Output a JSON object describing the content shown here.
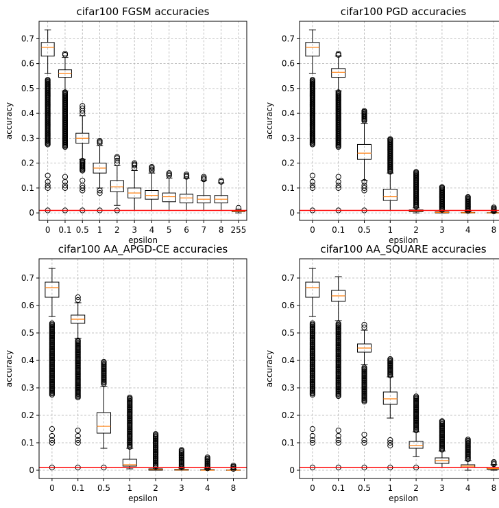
{
  "figure": {
    "background": "#ffffff"
  },
  "chart_data": [
    {
      "type": "box",
      "title": "cifar100 FGSM accuracies",
      "xlabel": "epsilon",
      "ylabel": "accuracy",
      "ylim": [
        -0.03,
        0.77
      ],
      "yticks": [
        0.0,
        0.1,
        0.2,
        0.3,
        0.4,
        0.5,
        0.6,
        0.7
      ],
      "grid": true,
      "reference_line": {
        "y": 0.01,
        "color": "#ff0000"
      },
      "median_color": "#ff7f0e",
      "categories": [
        "0",
        "0.1",
        "0.5",
        "1",
        "2",
        "3",
        "4",
        "5",
        "6",
        "7",
        "8",
        "255"
      ],
      "boxes": [
        {
          "q1": 0.63,
          "median": 0.665,
          "q3": 0.685,
          "whislo": 0.56,
          "whishi": 0.735,
          "fliers_range": [
            0.275,
            0.535
          ],
          "fliers": [
            0.01,
            0.1,
            0.11,
            0.125,
            0.15
          ]
        },
        {
          "q1": 0.545,
          "median": 0.56,
          "q3": 0.575,
          "whislo": 0.49,
          "whishi": 0.625,
          "fliers_range": [
            0.265,
            0.485
          ],
          "fliers": [
            0.01,
            0.1,
            0.11,
            0.125,
            0.145,
            0.635,
            0.64
          ]
        },
        {
          "q1": 0.28,
          "median": 0.3,
          "q3": 0.32,
          "whislo": 0.215,
          "whishi": 0.39,
          "fliers_range": [
            0.17,
            0.21
          ],
          "fliers": [
            0.01,
            0.09,
            0.1,
            0.11,
            0.13,
            0.4,
            0.41,
            0.42,
            0.43
          ]
        },
        {
          "q1": 0.16,
          "median": 0.18,
          "q3": 0.2,
          "whislo": 0.1,
          "whishi": 0.27,
          "fliers": [
            0.01,
            0.08,
            0.09,
            0.28,
            0.285,
            0.29
          ]
        },
        {
          "q1": 0.085,
          "median": 0.105,
          "q3": 0.13,
          "whislo": 0.03,
          "whishi": 0.19,
          "fliers": [
            0.01,
            0.2,
            0.21,
            0.22,
            0.225
          ]
        },
        {
          "q1": 0.06,
          "median": 0.08,
          "q3": 0.1,
          "whislo": 0.01,
          "whishi": 0.17,
          "fliers": [
            0.18,
            0.19,
            0.195,
            0.2
          ]
        },
        {
          "q1": 0.055,
          "median": 0.07,
          "q3": 0.09,
          "whislo": 0.01,
          "whishi": 0.16,
          "fliers": [
            0.17,
            0.175,
            0.18,
            0.185
          ]
        },
        {
          "q1": 0.045,
          "median": 0.065,
          "q3": 0.08,
          "whislo": 0.01,
          "whishi": 0.14,
          "fliers": [
            0.15,
            0.155,
            0.16
          ]
        },
        {
          "q1": 0.04,
          "median": 0.06,
          "q3": 0.075,
          "whislo": 0.01,
          "whishi": 0.14,
          "fliers": [
            0.145,
            0.15,
            0.155
          ]
        },
        {
          "q1": 0.04,
          "median": 0.055,
          "q3": 0.07,
          "whislo": 0.01,
          "whishi": 0.13,
          "fliers": [
            0.135,
            0.14,
            0.145
          ]
        },
        {
          "q1": 0.04,
          "median": 0.055,
          "q3": 0.07,
          "whislo": 0.01,
          "whishi": 0.12,
          "fliers": [
            0.125,
            0.13
          ]
        },
        {
          "q1": 0.005,
          "median": 0.007,
          "q3": 0.01,
          "whislo": 0.0,
          "whishi": 0.015,
          "fliers": [
            0.02
          ]
        }
      ]
    },
    {
      "type": "box",
      "title": "cifar100 PGD accuracies",
      "xlabel": "epsilon",
      "ylabel": "accuracy",
      "ylim": [
        -0.03,
        0.77
      ],
      "yticks": [
        0.0,
        0.1,
        0.2,
        0.3,
        0.4,
        0.5,
        0.6,
        0.7
      ],
      "grid": true,
      "reference_line": {
        "y": 0.01,
        "color": "#ff0000"
      },
      "median_color": "#ff7f0e",
      "categories": [
        "0",
        "0.1",
        "0.5",
        "1",
        "2",
        "3",
        "4",
        "8"
      ],
      "boxes": [
        {
          "q1": 0.63,
          "median": 0.665,
          "q3": 0.685,
          "whislo": 0.56,
          "whishi": 0.735,
          "fliers_range": [
            0.275,
            0.535
          ],
          "fliers": [
            0.01,
            0.1,
            0.11,
            0.125,
            0.15
          ]
        },
        {
          "q1": 0.545,
          "median": 0.565,
          "q3": 0.58,
          "whislo": 0.49,
          "whishi": 0.63,
          "fliers_range": [
            0.265,
            0.485
          ],
          "fliers": [
            0.01,
            0.1,
            0.11,
            0.125,
            0.145,
            0.635,
            0.64
          ]
        },
        {
          "q1": 0.215,
          "median": 0.24,
          "q3": 0.275,
          "whislo": 0.13,
          "whishi": 0.36,
          "fliers_range": [
            0.37,
            0.41
          ],
          "fliers": [
            0.01,
            0.09,
            0.1,
            0.11,
            0.125
          ]
        },
        {
          "q1": 0.05,
          "median": 0.065,
          "q3": 0.095,
          "whislo": 0.01,
          "whishi": 0.16,
          "fliers_range": [
            0.165,
            0.3
          ],
          "fliers": []
        },
        {
          "q1": 0.005,
          "median": 0.008,
          "q3": 0.012,
          "whislo": 0.0,
          "whishi": 0.02,
          "fliers_range": [
            0.025,
            0.165
          ],
          "fliers": []
        },
        {
          "q1": 0.0,
          "median": 0.002,
          "q3": 0.004,
          "whislo": 0.0,
          "whishi": 0.01,
          "fliers_range": [
            0.012,
            0.105
          ],
          "fliers": []
        },
        {
          "q1": 0.0,
          "median": 0.001,
          "q3": 0.002,
          "whislo": 0.0,
          "whishi": 0.005,
          "fliers_range": [
            0.008,
            0.065
          ],
          "fliers": []
        },
        {
          "q1": 0.0,
          "median": 0.0,
          "q3": 0.001,
          "whislo": 0.0,
          "whishi": 0.003,
          "fliers_range": [
            0.006,
            0.025
          ],
          "fliers": []
        }
      ]
    },
    {
      "type": "box",
      "title": "cifar100 AA_APGD-CE accuracies",
      "xlabel": "epsilon",
      "ylabel": "accuracy",
      "ylim": [
        -0.03,
        0.77
      ],
      "yticks": [
        0.0,
        0.1,
        0.2,
        0.3,
        0.4,
        0.5,
        0.6,
        0.7
      ],
      "grid": true,
      "reference_line": {
        "y": 0.01,
        "color": "#ff0000"
      },
      "median_color": "#ff7f0e",
      "categories": [
        "0",
        "0.1",
        "0.5",
        "1",
        "2",
        "3",
        "4",
        "8"
      ],
      "boxes": [
        {
          "q1": 0.63,
          "median": 0.665,
          "q3": 0.685,
          "whislo": 0.56,
          "whishi": 0.735,
          "fliers_range": [
            0.275,
            0.535
          ],
          "fliers": [
            0.01,
            0.1,
            0.11,
            0.125,
            0.15
          ]
        },
        {
          "q1": 0.535,
          "median": 0.55,
          "q3": 0.565,
          "whislo": 0.48,
          "whishi": 0.61,
          "fliers_range": [
            0.265,
            0.475
          ],
          "fliers": [
            0.01,
            0.1,
            0.11,
            0.125,
            0.145,
            0.62,
            0.63
          ]
        },
        {
          "q1": 0.135,
          "median": 0.16,
          "q3": 0.21,
          "whislo": 0.08,
          "whishi": 0.305,
          "fliers_range": [
            0.315,
            0.395
          ],
          "fliers": [
            0.01
          ]
        },
        {
          "q1": 0.015,
          "median": 0.02,
          "q3": 0.04,
          "whislo": 0.005,
          "whishi": 0.08,
          "fliers_range": [
            0.085,
            0.265
          ],
          "fliers": []
        },
        {
          "q1": 0.0,
          "median": 0.002,
          "q3": 0.005,
          "whislo": 0.0,
          "whishi": 0.01,
          "fliers_range": [
            0.012,
            0.135
          ],
          "fliers": []
        },
        {
          "q1": 0.0,
          "median": 0.001,
          "q3": 0.003,
          "whislo": 0.0,
          "whishi": 0.008,
          "fliers_range": [
            0.01,
            0.075
          ],
          "fliers": []
        },
        {
          "q1": 0.0,
          "median": 0.0,
          "q3": 0.002,
          "whislo": 0.0,
          "whishi": 0.005,
          "fliers_range": [
            0.007,
            0.05
          ],
          "fliers": []
        },
        {
          "q1": 0.0,
          "median": 0.0,
          "q3": 0.001,
          "whislo": 0.0,
          "whishi": 0.003,
          "fliers_range": [
            0.005,
            0.02
          ],
          "fliers": []
        }
      ]
    },
    {
      "type": "box",
      "title": "cifar100 AA_SQUARE accuracies",
      "xlabel": "epsilon",
      "ylabel": "accuracy",
      "ylim": [
        -0.03,
        0.77
      ],
      "yticks": [
        0.0,
        0.1,
        0.2,
        0.3,
        0.4,
        0.5,
        0.6,
        0.7
      ],
      "grid": true,
      "reference_line": {
        "y": 0.01,
        "color": "#ff0000"
      },
      "median_color": "#ff7f0e",
      "categories": [
        "0",
        "0.1",
        "0.5",
        "1",
        "2",
        "3",
        "4",
        "8"
      ],
      "boxes": [
        {
          "q1": 0.63,
          "median": 0.665,
          "q3": 0.685,
          "whislo": 0.56,
          "whishi": 0.735,
          "fliers_range": [
            0.275,
            0.535
          ],
          "fliers": [
            0.01,
            0.1,
            0.11,
            0.125,
            0.15
          ]
        },
        {
          "q1": 0.615,
          "median": 0.635,
          "q3": 0.655,
          "whislo": 0.545,
          "whishi": 0.705,
          "fliers_range": [
            0.27,
            0.535
          ],
          "fliers": [
            0.01,
            0.1,
            0.11,
            0.125,
            0.145
          ]
        },
        {
          "q1": 0.43,
          "median": 0.445,
          "q3": 0.46,
          "whislo": 0.385,
          "whishi": 0.51,
          "fliers_range": [
            0.25,
            0.375
          ],
          "fliers": [
            0.01,
            0.1,
            0.11,
            0.13,
            0.52,
            0.53
          ]
        },
        {
          "q1": 0.24,
          "median": 0.26,
          "q3": 0.285,
          "whislo": 0.19,
          "whishi": 0.34,
          "fliers_range": [
            0.345,
            0.405
          ],
          "fliers": [
            0.01,
            0.09,
            0.1,
            0.11
          ]
        },
        {
          "q1": 0.08,
          "median": 0.09,
          "q3": 0.105,
          "whislo": 0.05,
          "whishi": 0.14,
          "fliers_range": [
            0.145,
            0.27
          ],
          "fliers": [
            0.01
          ]
        },
        {
          "q1": 0.025,
          "median": 0.035,
          "q3": 0.045,
          "whislo": 0.01,
          "whishi": 0.07,
          "fliers_range": [
            0.075,
            0.18
          ],
          "fliers": []
        },
        {
          "q1": 0.01,
          "median": 0.015,
          "q3": 0.02,
          "whislo": 0.0,
          "whishi": 0.035,
          "fliers_range": [
            0.04,
            0.115
          ],
          "fliers": []
        },
        {
          "q1": 0.003,
          "median": 0.006,
          "q3": 0.01,
          "whislo": 0.0,
          "whishi": 0.02,
          "fliers_range": [
            0.022,
            0.03
          ],
          "fliers": []
        }
      ]
    }
  ]
}
